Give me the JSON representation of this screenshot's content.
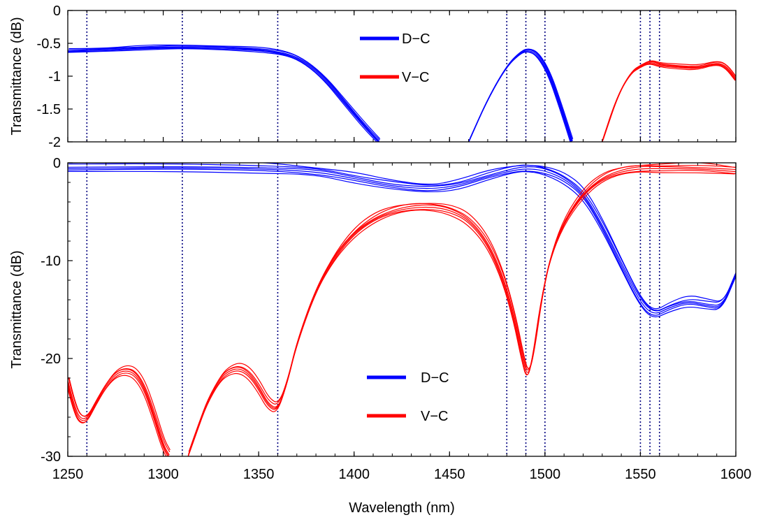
{
  "chart_data": [
    {
      "type": "line",
      "panel": "top",
      "xlabel": "",
      "ylabel": "Transmittance (dB)",
      "xlim": [
        1250,
        1600
      ],
      "ylim": [
        -2,
        0
      ],
      "yticks": [
        0,
        -0.5,
        -1,
        -1.5,
        -2
      ],
      "ytick_labels": [
        "0",
        "-0.5",
        "-1",
        "-1.5",
        "-2"
      ],
      "xticks": [
        1250,
        1300,
        1350,
        1400,
        1450,
        1500,
        1550,
        1600
      ],
      "vlines": [
        1260,
        1310,
        1360,
        1480,
        1490,
        1500,
        1550,
        1555,
        1560
      ],
      "legend_placement": "top-center",
      "series": [
        {
          "name": "D−C",
          "color": "#0000ff",
          "segments": [
            {
              "x": [
                1250,
                1270,
                1290,
                1310,
                1330,
                1350,
                1365,
                1375,
                1385,
                1395,
                1405,
                1413
              ],
              "y": [
                -0.62,
                -0.6,
                -0.57,
                -0.56,
                -0.57,
                -0.6,
                -0.66,
                -0.8,
                -1.05,
                -1.4,
                -1.75,
                -2.0
              ]
            },
            {
              "x": [
                1460,
                1470,
                1480,
                1487,
                1491,
                1496,
                1502,
                1508,
                1514
              ],
              "y": [
                -2.0,
                -1.35,
                -0.85,
                -0.65,
                -0.6,
                -0.66,
                -0.95,
                -1.45,
                -2.0
              ]
            }
          ]
        },
        {
          "name": "V−C",
          "color": "#ff0000",
          "segments": [
            {
              "x": [
                1530,
                1538,
                1545,
                1550,
                1555,
                1560,
                1570,
                1580,
                1590,
                1595,
                1600
              ],
              "y": [
                -2.0,
                -1.3,
                -0.95,
                -0.85,
                -0.78,
                -0.83,
                -0.86,
                -0.88,
                -0.8,
                -0.86,
                -1.05
              ]
            }
          ]
        }
      ]
    },
    {
      "type": "line",
      "panel": "bottom",
      "xlabel": "Wavelength (nm)",
      "ylabel": "Transmittance (dB)",
      "xlim": [
        1250,
        1600
      ],
      "ylim": [
        -30,
        0
      ],
      "yticks": [
        0,
        -10,
        -20,
        -30
      ],
      "ytick_labels": [
        "0",
        "-10",
        "-20",
        "-30"
      ],
      "xticks": [
        1250,
        1300,
        1350,
        1400,
        1450,
        1500,
        1550,
        1600
      ],
      "xtick_labels": [
        "1250",
        "1300",
        "1350",
        "1400",
        "1450",
        "1500",
        "1550",
        "1600"
      ],
      "vlines": [
        1260,
        1310,
        1360,
        1480,
        1490,
        1500,
        1550,
        1555,
        1560
      ],
      "legend_placement": "bottom-center",
      "series": [
        {
          "name": "D−C",
          "color": "#0000ff",
          "segments": [
            {
              "x": [
                1250,
                1300,
                1350,
                1380,
                1400,
                1420,
                1440,
                1455,
                1470,
                1485,
                1492,
                1500,
                1510,
                1520,
                1530,
                1540,
                1550,
                1557,
                1565,
                1575,
                1585,
                1593,
                1600
              ],
              "y": [
                -0.6,
                -0.5,
                -0.6,
                -0.9,
                -1.6,
                -2.4,
                -2.7,
                -2.3,
                -1.4,
                -0.7,
                -0.6,
                -0.8,
                -1.6,
                -3.2,
                -6.5,
                -10.5,
                -14.3,
                -15.6,
                -14.8,
                -14.2,
                -14.6,
                -14.8,
                -11.5
              ]
            }
          ]
        },
        {
          "name": "V−C",
          "color": "#ff0000",
          "segments": [
            {
              "x": [
                1250,
                1253,
                1256,
                1260,
                1265,
                1270,
                1275,
                1280,
                1285,
                1290,
                1295,
                1300,
                1303
              ],
              "y": [
                -22.5,
                -24.8,
                -26.3,
                -26.4,
                -24.5,
                -22.8,
                -21.6,
                -21.2,
                -21.5,
                -23.0,
                -25.8,
                -29.0,
                -30.0
              ]
            },
            {
              "x": [
                1313,
                1318,
                1323,
                1330,
                1335,
                1340,
                1345,
                1350,
                1355,
                1360,
                1365,
                1370,
                1380,
                1390,
                1400,
                1410,
                1420,
                1430,
                1440,
                1450,
                1460,
                1470,
                1478,
                1484,
                1488,
                1491,
                1494,
                1498,
                1503,
                1510,
                1520,
                1530,
                1540,
                1550,
                1560,
                1580,
                1600
              ],
              "y": [
                -30.0,
                -27.2,
                -24.5,
                -22.0,
                -21.2,
                -21.0,
                -21.6,
                -23.0,
                -24.8,
                -25.3,
                -22.5,
                -18.5,
                -13.0,
                -9.5,
                -7.2,
                -5.8,
                -5.0,
                -4.6,
                -4.5,
                -4.8,
                -5.8,
                -8.2,
                -11.8,
                -16.0,
                -19.8,
                -22.0,
                -19.5,
                -14.0,
                -9.5,
                -6.0,
                -3.2,
                -1.6,
                -0.9,
                -0.6,
                -0.6,
                -0.6,
                -0.9
              ]
            }
          ]
        }
      ]
    }
  ]
}
